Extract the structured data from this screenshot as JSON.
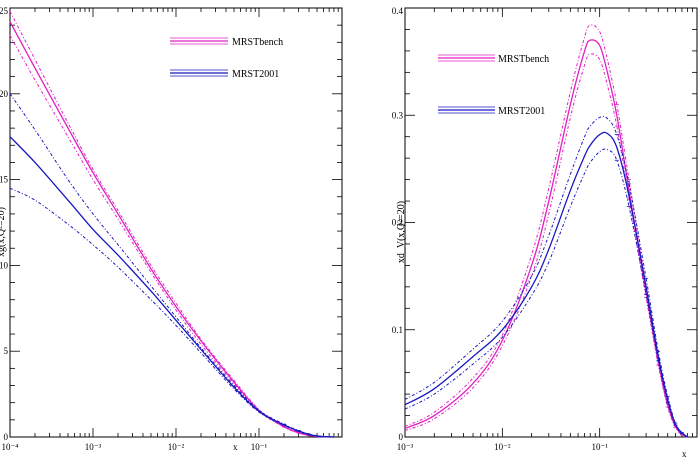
{
  "colors": {
    "mrstbench": "#e020c0",
    "mrst2001": "#1818c0"
  },
  "chart_data": [
    {
      "type": "line",
      "title": "",
      "xlabel": "x",
      "ylabel": "xg(x,Q²=20)",
      "xscale": "log",
      "xlim": [
        0.0001,
        1
      ],
      "ylim": [
        0,
        25
      ],
      "x_ticks": [
        "10⁻⁴",
        "10⁻³",
        "10⁻²",
        "10⁻¹"
      ],
      "y_ticks": [
        "0",
        "5",
        "10",
        "15",
        "20",
        "25"
      ],
      "legend": {
        "position": "top-right",
        "entries": [
          "MRSTbench",
          "MRST2001"
        ]
      },
      "x": [
        0.0001,
        0.0002,
        0.0005,
        0.001,
        0.002,
        0.005,
        0.01,
        0.02,
        0.05,
        0.1,
        0.2,
        0.3,
        0.4,
        0.5,
        0.6,
        0.8
      ],
      "series": [
        {
          "name": "MRSTbench",
          "color": "#e020c0",
          "values": [
            24.2,
            21.5,
            18.0,
            15.4,
            13.0,
            9.8,
            7.6,
            5.6,
            3.2,
            1.55,
            0.6,
            0.25,
            0.1,
            0.04,
            0.02,
            0.0
          ],
          "upper": [
            24.8,
            22.0,
            18.3,
            15.6,
            13.2,
            10.0,
            7.8,
            5.7,
            3.3,
            1.6,
            0.62,
            0.27,
            0.11,
            0.05,
            0.02,
            0.0
          ],
          "lower": [
            23.4,
            20.8,
            17.5,
            15.0,
            12.7,
            9.6,
            7.4,
            5.4,
            3.1,
            1.5,
            0.58,
            0.23,
            0.09,
            0.03,
            0.01,
            0.0
          ]
        },
        {
          "name": "MRST2001",
          "color": "#1818c0",
          "values": [
            17.5,
            16.0,
            13.8,
            12.1,
            10.6,
            8.5,
            6.8,
            5.1,
            2.9,
            1.5,
            0.7,
            0.35,
            0.15,
            0.06,
            0.02,
            0.0
          ],
          "upper": [
            20.0,
            17.9,
            15.0,
            13.0,
            11.2,
            8.8,
            7.0,
            5.2,
            3.0,
            1.55,
            0.75,
            0.38,
            0.17,
            0.07,
            0.03,
            0.0
          ],
          "lower": [
            14.5,
            13.8,
            12.4,
            11.2,
            9.9,
            8.0,
            6.5,
            4.9,
            2.8,
            1.45,
            0.68,
            0.32,
            0.13,
            0.05,
            0.02,
            0.0
          ]
        }
      ]
    },
    {
      "type": "line",
      "title": "",
      "xlabel": "x",
      "ylabel": "xd_V(x,Q²=20)",
      "xscale": "log",
      "xlim": [
        0.001,
        1
      ],
      "ylim": [
        0,
        0.4
      ],
      "x_ticks": [
        "10⁻³",
        "10⁻²",
        "10⁻¹"
      ],
      "y_ticks": [
        "0",
        "0.1",
        "0.2",
        "0.3",
        "0.4"
      ],
      "legend": {
        "position": "top-left",
        "entries": [
          "MRSTbench",
          "MRST2001"
        ]
      },
      "x": [
        0.001,
        0.002,
        0.005,
        0.01,
        0.02,
        0.03,
        0.05,
        0.07,
        0.08,
        0.1,
        0.12,
        0.15,
        0.2,
        0.3,
        0.4,
        0.5,
        0.6,
        0.7,
        0.8
      ],
      "series": [
        {
          "name": "MRSTbench",
          "color": "#e020c0",
          "values": [
            0.008,
            0.02,
            0.05,
            0.09,
            0.16,
            0.22,
            0.31,
            0.36,
            0.37,
            0.365,
            0.34,
            0.3,
            0.23,
            0.135,
            0.07,
            0.03,
            0.01,
            0.003,
            0.0
          ],
          "upper": [
            0.01,
            0.023,
            0.055,
            0.095,
            0.17,
            0.232,
            0.322,
            0.373,
            0.384,
            0.378,
            0.352,
            0.31,
            0.24,
            0.14,
            0.073,
            0.032,
            0.011,
            0.003,
            0.0
          ],
          "lower": [
            0.006,
            0.017,
            0.046,
            0.085,
            0.15,
            0.208,
            0.298,
            0.347,
            0.357,
            0.352,
            0.328,
            0.29,
            0.222,
            0.13,
            0.067,
            0.028,
            0.009,
            0.002,
            0.0
          ]
        },
        {
          "name": "MRST2001",
          "color": "#1818c0",
          "values": [
            0.03,
            0.045,
            0.075,
            0.1,
            0.14,
            0.175,
            0.23,
            0.262,
            0.272,
            0.282,
            0.283,
            0.27,
            0.225,
            0.14,
            0.075,
            0.035,
            0.012,
            0.004,
            0.0
          ],
          "upper": [
            0.035,
            0.051,
            0.082,
            0.108,
            0.15,
            0.188,
            0.245,
            0.28,
            0.29,
            0.298,
            0.297,
            0.282,
            0.236,
            0.148,
            0.08,
            0.038,
            0.013,
            0.004,
            0.0
          ],
          "lower": [
            0.026,
            0.04,
            0.068,
            0.093,
            0.132,
            0.163,
            0.215,
            0.246,
            0.256,
            0.266,
            0.268,
            0.258,
            0.215,
            0.133,
            0.071,
            0.032,
            0.011,
            0.003,
            0.0
          ]
        }
      ]
    }
  ]
}
